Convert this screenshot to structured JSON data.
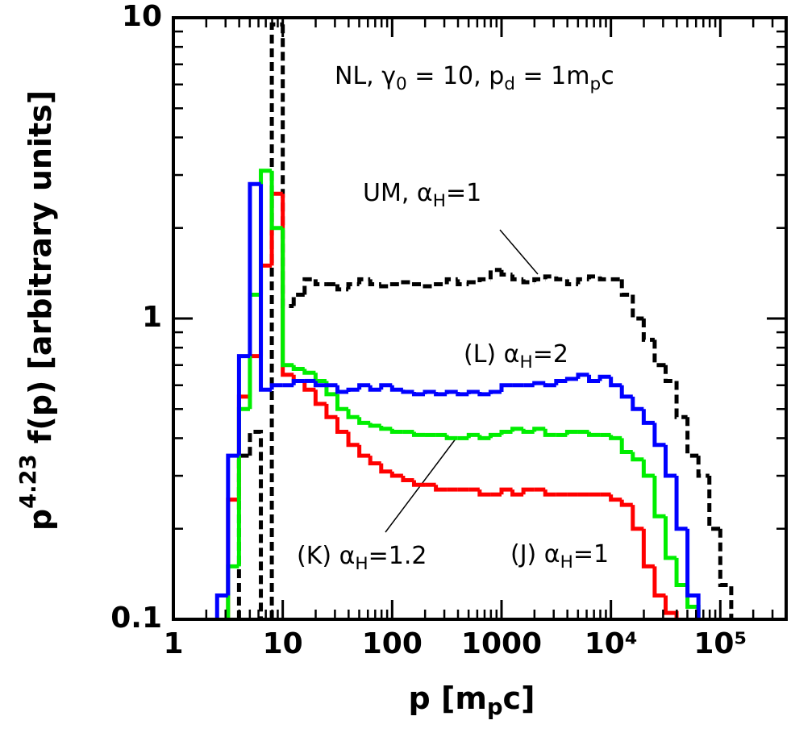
{
  "chart_data": {
    "type": "histogram",
    "xlog": true,
    "ylog": true,
    "minor_ticks": true,
    "xlim": [
      1,
      400000
    ],
    "ylim": [
      0.1,
      10
    ],
    "xticks": [
      1,
      10,
      100,
      1000,
      {
        "value": 10000,
        "label": "10⁴"
      },
      {
        "value": 100000,
        "label": "10⁵"
      }
    ],
    "yticks": [
      0.1,
      1,
      10
    ],
    "x_label": [
      {
        "text": "p  [m"
      },
      {
        "text": "p",
        "sub": true
      },
      {
        "text": "c]"
      }
    ],
    "y_label": [
      {
        "text": "p"
      },
      {
        "text": "4.23",
        "sup": true
      },
      {
        "text": " f(p)  [arbitrary units]"
      }
    ],
    "bins": [
      2.512,
      3.162,
      3.981,
      5.012,
      6.31,
      7.943,
      10,
      12.59,
      15.85,
      19.95,
      25.12,
      31.62,
      39.81,
      50.12,
      63.1,
      79.43,
      100,
      125.9,
      158.5,
      199.5,
      251.2,
      316.2,
      398.1,
      501.2,
      631,
      794.3,
      1000,
      1259,
      1585,
      1995,
      2512,
      3162,
      3981,
      5012,
      6310,
      7943,
      10000,
      12589,
      15849,
      19953,
      25119,
      31623,
      39811,
      50119,
      63096,
      79433,
      100000,
      125893
    ],
    "series": [
      {
        "color": "#000000",
        "dashed": true,
        "values": [
          null,
          null,
          0.35,
          0.42,
          null,
          9.5,
          1.1,
          1.2,
          1.35,
          1.3,
          1.3,
          1.25,
          1.3,
          1.35,
          1.3,
          1.28,
          1.3,
          1.32,
          1.3,
          1.28,
          1.3,
          1.35,
          1.3,
          1.32,
          1.35,
          1.45,
          1.4,
          1.35,
          1.32,
          1.35,
          1.38,
          1.35,
          1.3,
          1.35,
          1.38,
          1.35,
          1.35,
          1.2,
          1.0,
          0.85,
          0.7,
          0.62,
          0.47,
          0.35,
          0.3,
          0.2,
          0.13
        ]
      },
      {
        "color": "#ff0000",
        "values": [
          null,
          0.25,
          0.55,
          0.75,
          1.5,
          2.6,
          0.65,
          0.62,
          0.58,
          0.52,
          0.47,
          0.42,
          0.38,
          0.35,
          0.33,
          0.31,
          0.3,
          0.29,
          0.28,
          0.28,
          0.27,
          0.27,
          0.27,
          0.27,
          0.26,
          0.26,
          0.27,
          0.26,
          0.27,
          0.27,
          0.26,
          0.26,
          0.26,
          0.26,
          0.26,
          0.26,
          0.25,
          0.24,
          0.2,
          0.15,
          0.12,
          0.105,
          null,
          null,
          null,
          null,
          null
        ]
      },
      {
        "color": "#00ee00",
        "values": [
          null,
          0.15,
          0.5,
          1.2,
          3.1,
          2.0,
          0.7,
          0.68,
          0.66,
          0.62,
          0.56,
          0.5,
          0.47,
          0.45,
          0.44,
          0.43,
          0.42,
          0.42,
          0.41,
          0.41,
          0.41,
          0.4,
          0.4,
          0.41,
          0.4,
          0.41,
          0.42,
          0.43,
          0.42,
          0.43,
          0.41,
          0.41,
          0.42,
          0.42,
          0.41,
          0.41,
          0.4,
          0.36,
          0.34,
          0.3,
          0.22,
          0.16,
          0.13,
          0.11,
          null,
          null,
          null
        ]
      },
      {
        "color": "#0000ff",
        "values": [
          0.12,
          0.35,
          0.75,
          2.8,
          0.58,
          0.6,
          0.6,
          0.62,
          0.62,
          0.6,
          0.6,
          0.57,
          0.58,
          0.6,
          0.58,
          0.6,
          0.58,
          0.57,
          0.56,
          0.57,
          0.56,
          0.57,
          0.56,
          0.57,
          0.56,
          0.57,
          0.6,
          0.6,
          0.6,
          0.61,
          0.6,
          0.62,
          0.63,
          0.65,
          0.62,
          0.64,
          0.6,
          0.55,
          0.5,
          0.45,
          0.38,
          0.3,
          0.2,
          0.12,
          null,
          null,
          null
        ]
      }
    ],
    "annotations": [
      {
        "parts": [
          {
            "text": "NL, γ"
          },
          {
            "text": "0",
            "sub": true
          },
          {
            "text": " = 10, p"
          },
          {
            "text": "d",
            "sub": true
          },
          {
            "text": " = 1m"
          },
          {
            "text": "p",
            "sub": true
          },
          {
            "text": "c"
          }
        ]
      },
      {
        "parts": [
          {
            "text": "UM, α"
          },
          {
            "text": "H",
            "sub": true
          },
          {
            "text": "=1"
          }
        ]
      },
      {
        "parts": [
          {
            "text": "(L) α"
          },
          {
            "text": "H",
            "sub": true
          },
          {
            "text": "=2"
          }
        ]
      },
      {
        "parts": [
          {
            "text": "(K) α"
          },
          {
            "text": "H",
            "sub": true
          },
          {
            "text": "=1.2"
          }
        ]
      },
      {
        "parts": [
          {
            "text": "(J) α"
          },
          {
            "text": "H",
            "sub": true
          },
          {
            "text": "=1"
          }
        ]
      }
    ]
  }
}
